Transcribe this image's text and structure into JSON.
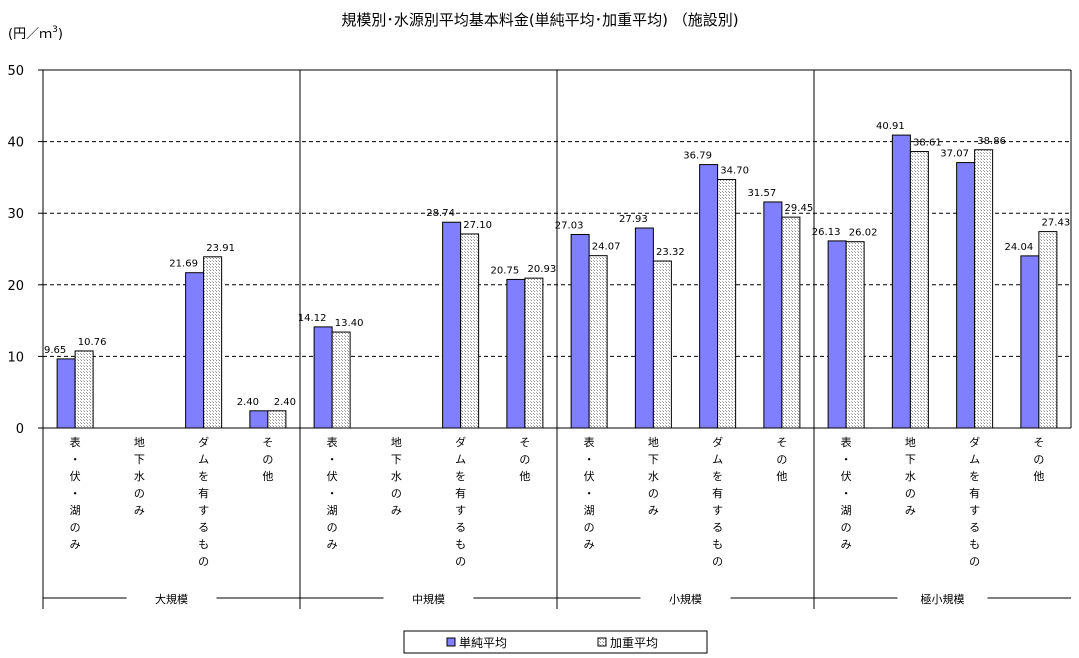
{
  "chart_data": {
    "type": "bar",
    "title": "規模別･水源別平均基本料金(単純平均･加重平均) （施設別)",
    "ylabel": "(円／ｍ",
    "ylabel_superscript": "3",
    "ylabel_close": ")",
    "ylim": [
      0,
      50
    ],
    "yticks": [
      "0",
      "10",
      "20",
      "30",
      "40",
      "50"
    ],
    "grid": true,
    "legend_position": "bottom",
    "groups": [
      {
        "name": "大規模",
        "categories": [
          {
            "label": "表・伏・湖のみ",
            "values": [
              9.65,
              10.76
            ],
            "labels": [
              "9.65",
              "10.76"
            ]
          },
          {
            "label": "地下水のみ",
            "values": [
              null,
              null
            ],
            "labels": [
              "",
              ""
            ]
          },
          {
            "label": "ダムを有するもの",
            "values": [
              21.69,
              23.91
            ],
            "labels": [
              "21.69",
              "23.91"
            ]
          },
          {
            "label": "その他",
            "values": [
              2.4,
              2.4
            ],
            "labels": [
              "2.40",
              "2.40"
            ]
          }
        ]
      },
      {
        "name": "中規模",
        "categories": [
          {
            "label": "表・伏・湖のみ",
            "values": [
              14.12,
              13.4
            ],
            "labels": [
              "14.12",
              "13.40"
            ]
          },
          {
            "label": "地下水のみ",
            "values": [
              null,
              null
            ],
            "labels": [
              "",
              ""
            ]
          },
          {
            "label": "ダムを有するもの",
            "values": [
              28.74,
              27.1
            ],
            "labels": [
              "28.74",
              "27.10"
            ]
          },
          {
            "label": "その他",
            "values": [
              20.75,
              20.93
            ],
            "labels": [
              "20.75",
              "20.93"
            ]
          }
        ]
      },
      {
        "name": "小規模",
        "categories": [
          {
            "label": "表・伏・湖のみ",
            "values": [
              27.03,
              24.07
            ],
            "labels": [
              "27.03",
              "24.07"
            ]
          },
          {
            "label": "地下水のみ",
            "values": [
              27.93,
              23.32
            ],
            "labels": [
              "27.93",
              "23.32"
            ]
          },
          {
            "label": "ダムを有するもの",
            "values": [
              36.79,
              34.7
            ],
            "labels": [
              "36.79",
              "34.70"
            ]
          },
          {
            "label": "その他",
            "values": [
              31.57,
              29.45
            ],
            "labels": [
              "31.57",
              "29.45"
            ]
          }
        ]
      },
      {
        "name": "極小規模",
        "categories": [
          {
            "label": "表・伏・湖のみ",
            "values": [
              26.13,
              26.02
            ],
            "labels": [
              "26.13",
              "26.02"
            ]
          },
          {
            "label": "地下水のみ",
            "values": [
              40.91,
              38.61
            ],
            "labels": [
              "40.91",
              "38.61"
            ]
          },
          {
            "label": "ダムを有するもの",
            "values": [
              37.07,
              38.86
            ],
            "labels": [
              "37.07",
              "38.86"
            ]
          },
          {
            "label": "その他",
            "values": [
              24.04,
              27.43
            ],
            "labels": [
              "24.04",
              "27.43"
            ]
          }
        ]
      }
    ],
    "series": [
      {
        "name": "単純平均",
        "color": "#8080ff"
      },
      {
        "name": "加重平均",
        "color": "#e8e8e8",
        "pattern": "crosshatch"
      }
    ]
  }
}
